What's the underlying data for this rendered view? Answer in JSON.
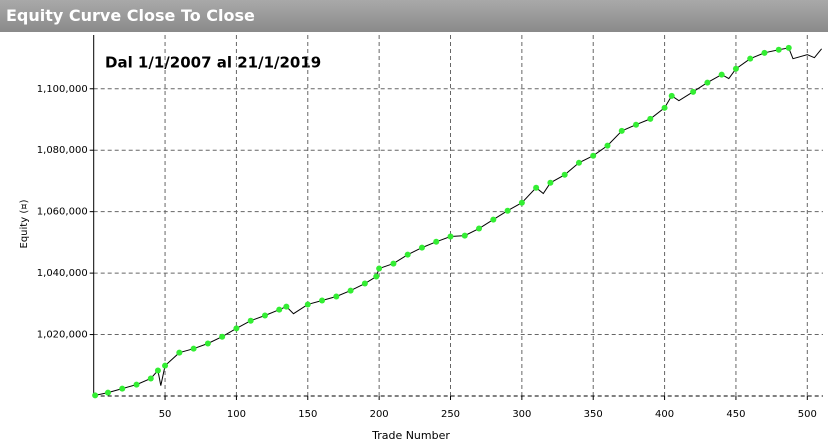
{
  "chart_data": {
    "type": "line",
    "title": "Equity Curve Close To Close",
    "annotation": "Dal 1/1/2007 al 21/1/2019",
    "x_label": "Trade Number",
    "y_label": "Equity (¤)",
    "x": [
      1,
      10,
      20,
      30,
      40,
      45,
      47,
      50,
      60,
      70,
      80,
      90,
      100,
      110,
      120,
      130,
      135,
      140,
      150,
      160,
      170,
      180,
      190,
      198,
      200,
      210,
      220,
      230,
      240,
      250,
      260,
      270,
      280,
      290,
      300,
      310,
      315,
      320,
      330,
      340,
      350,
      360,
      370,
      380,
      390,
      400,
      405,
      410,
      420,
      430,
      440,
      445,
      450,
      460,
      470,
      480,
      487,
      490,
      500,
      505,
      510
    ],
    "series": [
      {
        "color": "#000000",
        "values": [
          1000200,
          1001100,
          1002400,
          1003700,
          1005700,
          1008300,
          1003400,
          1009900,
          1014100,
          1015400,
          1017100,
          1019300,
          1022000,
          1024500,
          1026200,
          1028100,
          1029100,
          1026800,
          1029800,
          1031100,
          1032400,
          1034300,
          1036600,
          1038900,
          1041500,
          1043100,
          1046000,
          1048300,
          1050200,
          1051900,
          1052200,
          1054500,
          1057400,
          1060300,
          1062900,
          1067800,
          1065900,
          1069400,
          1072000,
          1075900,
          1078200,
          1081500,
          1086300,
          1088300,
          1090200,
          1093800,
          1097700,
          1096100,
          1099000,
          1102000,
          1104600,
          1103300,
          1106500,
          1109800,
          1111700,
          1112700,
          1113300,
          1109800,
          1111100,
          1110100,
          1113000
        ]
      },
      {
        "color": "#33ee33",
        "values": [
          1000200,
          1001100,
          1002400,
          1003700,
          1005700,
          1008300,
          null,
          1009900,
          1014100,
          1015400,
          1017100,
          1019300,
          1022000,
          1024500,
          1026200,
          1028100,
          1029100,
          null,
          1029800,
          1031100,
          1032400,
          1034300,
          1036600,
          1038900,
          1041500,
          1043100,
          1046000,
          1048300,
          1050200,
          1051900,
          1052200,
          1054500,
          1057400,
          1060300,
          1062900,
          1067800,
          null,
          1069400,
          1072000,
          1075900,
          1078200,
          1081500,
          1086300,
          1088300,
          1090200,
          1093800,
          1097700,
          null,
          1099000,
          1102000,
          1104600,
          null,
          1106500,
          1109800,
          1111700,
          1112700,
          1113300,
          null,
          null,
          null,
          null
        ]
      }
    ],
    "xlim": [
      0,
      511
    ],
    "xticks": [
      50,
      100,
      150,
      200,
      250,
      300,
      350,
      400,
      450,
      500
    ],
    "ylim": [
      1000000,
      1117500
    ],
    "yticks": [
      {
        "value": 1020000,
        "label": "1,020,000"
      },
      {
        "value": 1040000,
        "label": "1,040,000"
      },
      {
        "value": 1060000,
        "label": "1,060,000"
      },
      {
        "value": 1080000,
        "label": "1,080,000"
      },
      {
        "value": 1100000,
        "label": "1,100,000"
      }
    ],
    "grid": true
  }
}
